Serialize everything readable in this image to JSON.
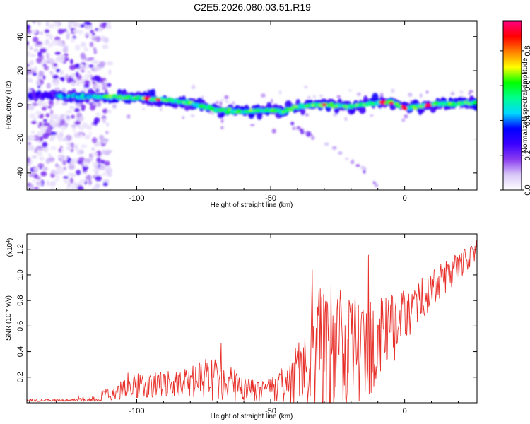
{
  "title": "C2E5.2026.080.03.51.R19",
  "chart_data": [
    {
      "type": "heatmap",
      "name": "spectrogram",
      "xlabel": "Height of straight line (km)",
      "ylabel": "Frequency (Hz)",
      "xlim": [
        -141,
        27
      ],
      "ylim": [
        -50,
        49
      ],
      "xticks": [
        -100,
        -50,
        0
      ],
      "xtick_labels": [
        "-100",
        "-50",
        "0"
      ],
      "yticks": [
        -40,
        -20,
        0,
        20,
        40
      ],
      "ytick_labels": [
        "-40",
        "-20",
        "0",
        "20",
        "40"
      ],
      "ridge_line": {
        "x": [
          -115,
          -100,
          -90,
          -80,
          -70,
          -60,
          -50,
          -45,
          -40,
          -30,
          -20,
          -10,
          -5,
          0,
          10,
          20,
          27
        ],
        "y": [
          5,
          4,
          3,
          1,
          -3,
          -4,
          -3,
          -4,
          -1,
          0,
          -1,
          1,
          2,
          -2,
          0,
          1,
          1
        ]
      },
      "descending_tail": {
        "x": [
          -42,
          -35,
          -25,
          -15,
          -10
        ],
        "y": [
          -12,
          -18,
          -27,
          -38,
          -48
        ]
      },
      "scatter_region_x": [
        -141,
        -110
      ],
      "colorbar": {
        "label": "Normalized spectral amplitude",
        "range": [
          0.0,
          0.97
        ],
        "ticks": [
          0.0,
          0.2,
          0.4,
          0.6,
          0.8
        ],
        "tick_labels": [
          "0.0",
          "0.2",
          "0.4",
          "0.6",
          "0.8"
        ],
        "colors": [
          "#ffffff",
          "#d8c8f8",
          "#8a3cf0",
          "#3a00ff",
          "#0000ff",
          "#00d8ff",
          "#00ff90",
          "#00ff00",
          "#ffff00",
          "#ff8000",
          "#ff0000",
          "#ff0080"
        ]
      }
    },
    {
      "type": "line",
      "name": "snr",
      "xlabel": "Height of straight line (km)",
      "ylabel": "SNR (10 * v/v)",
      "y_multiplier": "(x10",
      "y_multiplier_exp": "4",
      "y_multiplier_close": ")",
      "xlim": [
        -141,
        27
      ],
      "ylim": [
        0.0,
        1.32
      ],
      "xticks": [
        -100,
        -50,
        0
      ],
      "xtick_labels": [
        "-100",
        "-50",
        "0"
      ],
      "yticks": [
        0.2,
        0.4,
        0.6,
        0.8,
        1.0,
        1.2
      ],
      "ytick_labels": [
        "0.2",
        "0.4",
        "0.6",
        "0.8",
        "1.0",
        "1.2"
      ],
      "color": "#e8302a",
      "baseline": {
        "x": [
          -141,
          -125,
          -115,
          -110,
          -100,
          -90,
          -80,
          -75,
          -70,
          -60,
          -52,
          -48,
          -40,
          -35,
          -30,
          -25,
          -20,
          -15,
          -10,
          -5,
          0,
          5,
          10,
          15,
          20,
          27
        ],
        "y": [
          0.02,
          0.02,
          0.03,
          0.08,
          0.13,
          0.15,
          0.17,
          0.19,
          0.17,
          0.12,
          0.08,
          0.12,
          0.2,
          0.3,
          0.38,
          0.38,
          0.38,
          0.42,
          0.48,
          0.56,
          0.68,
          0.78,
          0.88,
          0.98,
          1.08,
          1.18
        ]
      },
      "amplitude": {
        "x": [
          -141,
          -125,
          -115,
          -110,
          -100,
          -80,
          -70,
          -60,
          -52,
          -48,
          -40,
          -35,
          -30,
          -25,
          -20,
          -15,
          -10,
          -5,
          0,
          10,
          20,
          27
        ],
        "y": [
          0.01,
          0.01,
          0.02,
          0.06,
          0.1,
          0.12,
          0.18,
          0.1,
          0.08,
          0.1,
          0.3,
          0.5,
          0.6,
          0.55,
          0.5,
          0.4,
          0.35,
          0.3,
          0.2,
          0.15,
          0.12,
          0.1
        ]
      }
    }
  ]
}
